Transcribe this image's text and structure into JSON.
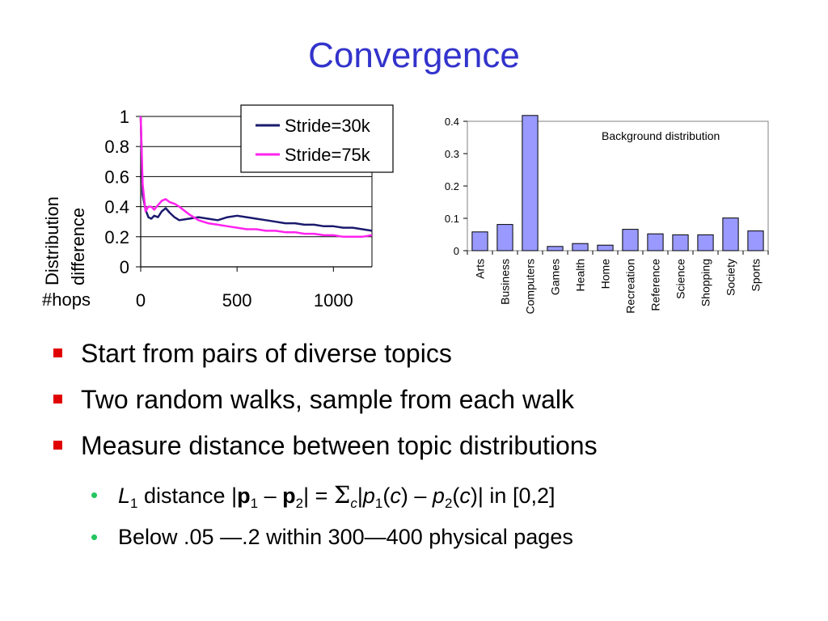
{
  "title": "Convergence",
  "chart_data": [
    {
      "type": "line",
      "ylabel": [
        "Distribution",
        "difference"
      ],
      "xlabel": "#hops",
      "ylim": [
        0,
        1
      ],
      "xlim": [
        0,
        1200
      ],
      "yticks": [
        "0",
        "0.2",
        "0.4",
        "0.6",
        "0.8",
        "1"
      ],
      "xticks": [
        "0",
        "500",
        "1000"
      ],
      "xtick_values": [
        0,
        500,
        1000
      ],
      "ytick_values": [
        0,
        0.2,
        0.4,
        0.6,
        0.8,
        1
      ],
      "grid": "horizontal",
      "legend_position": "top-right",
      "series": [
        {
          "name": "Stride=30k",
          "color": "#1a1a6e",
          "x": [
            0,
            10,
            25,
            40,
            55,
            70,
            90,
            110,
            130,
            150,
            175,
            200,
            250,
            300,
            350,
            400,
            450,
            500,
            550,
            600,
            650,
            700,
            750,
            800,
            850,
            900,
            950,
            1000,
            1050,
            1100,
            1150,
            1200
          ],
          "y": [
            1.0,
            0.48,
            0.38,
            0.33,
            0.32,
            0.34,
            0.33,
            0.37,
            0.39,
            0.36,
            0.33,
            0.31,
            0.32,
            0.33,
            0.32,
            0.31,
            0.33,
            0.34,
            0.33,
            0.32,
            0.31,
            0.3,
            0.29,
            0.29,
            0.28,
            0.28,
            0.27,
            0.27,
            0.26,
            0.26,
            0.25,
            0.24
          ]
        },
        {
          "name": "Stride=75k",
          "color": "#ff22ee",
          "x": [
            0,
            10,
            25,
            40,
            55,
            70,
            90,
            110,
            130,
            150,
            175,
            200,
            250,
            300,
            350,
            400,
            450,
            500,
            550,
            600,
            650,
            700,
            750,
            800,
            850,
            900,
            950,
            1000,
            1050,
            1100,
            1150,
            1200
          ],
          "y": [
            1.0,
            0.55,
            0.37,
            0.4,
            0.4,
            0.38,
            0.41,
            0.44,
            0.45,
            0.43,
            0.42,
            0.4,
            0.35,
            0.31,
            0.29,
            0.28,
            0.27,
            0.26,
            0.25,
            0.25,
            0.24,
            0.24,
            0.23,
            0.23,
            0.22,
            0.22,
            0.21,
            0.21,
            0.2,
            0.2,
            0.2,
            0.21
          ]
        }
      ]
    },
    {
      "type": "bar",
      "title": "Background distribution",
      "ylim": [
        0,
        0.4
      ],
      "yticks": [
        "0",
        "0.1",
        "0.2",
        "0.3",
        "0.4"
      ],
      "ytick_values": [
        0,
        0.1,
        0.2,
        0.3,
        0.4
      ],
      "bar_color": "#9999ff",
      "categories": [
        "Arts",
        "Business",
        "Computers",
        "Games",
        "Health",
        "Home",
        "Recreation",
        "Reference",
        "Science",
        "Shopping",
        "Society",
        "Sports"
      ],
      "values": [
        0.058,
        0.081,
        0.418,
        0.013,
        0.022,
        0.017,
        0.066,
        0.052,
        0.049,
        0.049,
        0.101,
        0.061
      ]
    }
  ],
  "bullets": [
    "Start from pairs of diverse topics",
    "Two random walks, sample from each walk",
    "Measure distance between topic distributions"
  ],
  "sub_bullets": {
    "formula": {
      "L": "L",
      "one": "1",
      "text_distance": " distance |",
      "p": "p",
      "sub1": "1",
      "minus": " – ",
      "sub2": "2",
      "eq": "| = ",
      "sigma": "Σ",
      "c": "c",
      "bar_open": "|",
      "paren_open": "(",
      "paren_close": ")",
      "tail": "| in [0,2]"
    },
    "second": "Below .05 —.2 within 300—400 physical pages"
  },
  "colors": {
    "title": "#3333cc",
    "bullet": "#e00000",
    "sub_bullet": "#22c55e"
  }
}
